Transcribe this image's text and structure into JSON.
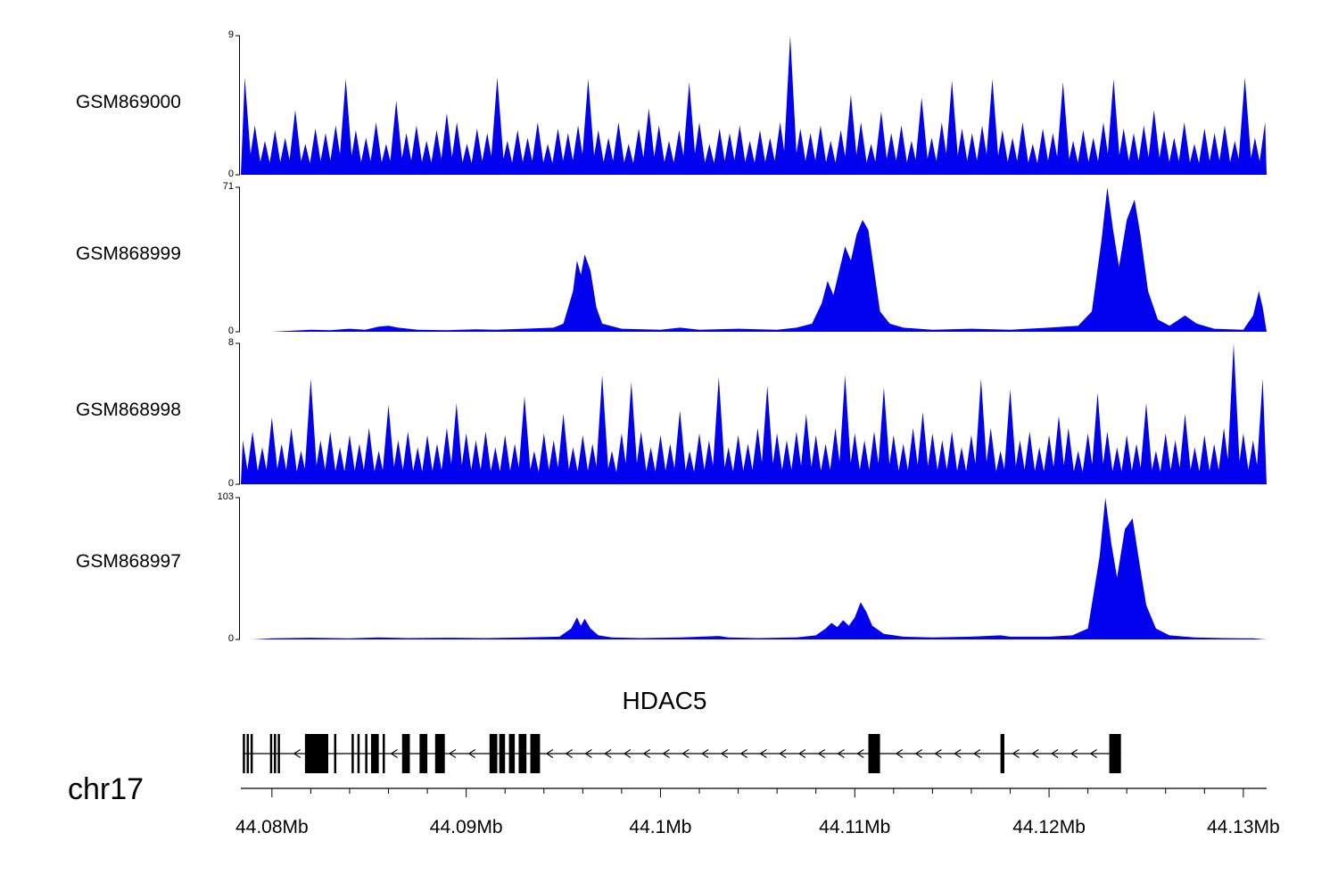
{
  "chart_data": {
    "type": "area",
    "chromosome_label": "chr17",
    "colors": {
      "track_fill": "#0202ee",
      "gene": "#000000",
      "axis": "#000000"
    },
    "x_axis": {
      "unit": "Mb",
      "range": [
        44.0784,
        44.1312
      ],
      "major_ticks": [
        44.08,
        44.09,
        44.1,
        44.11,
        44.12,
        44.13
      ],
      "major_tick_labels": [
        "44.08Mb",
        "44.09Mb",
        "44.1Mb",
        "44.11Mb",
        "44.12Mb",
        "44.13Mb"
      ],
      "minor_tick_step": 0.002
    },
    "tracks": [
      {
        "name": "GSM869000",
        "ylim": [
          0,
          9
        ],
        "ymax_label": "9",
        "ymin_label": "0",
        "render": "spikes",
        "spike_start": 44.0786,
        "spike_step": 0.00052,
        "spike_halfwidth": 0.00038,
        "heights": [
          6.3,
          3.2,
          2.2,
          2.9,
          2.4,
          4.2,
          2.0,
          3.0,
          2.7,
          3.2,
          6.2,
          2.9,
          2.4,
          3.4,
          2.0,
          4.8,
          2.7,
          3.2,
          2.2,
          2.9,
          4.0,
          3.4,
          2.0,
          3.0,
          2.7,
          6.3,
          2.2,
          2.9,
          2.4,
          3.4,
          2.0,
          3.0,
          2.7,
          3.2,
          6.2,
          2.9,
          2.4,
          3.4,
          2.0,
          3.0,
          4.3,
          3.2,
          2.2,
          2.9,
          6.0,
          3.4,
          2.0,
          3.0,
          2.7,
          3.2,
          2.2,
          2.9,
          2.4,
          3.4,
          9.0,
          3.0,
          2.7,
          3.2,
          2.2,
          2.9,
          5.2,
          3.4,
          2.0,
          4.1,
          2.7,
          3.2,
          2.2,
          5.0,
          2.4,
          3.4,
          6.1,
          3.0,
          2.7,
          3.2,
          6.2,
          2.9,
          2.4,
          3.4,
          2.0,
          3.0,
          2.7,
          6.0,
          2.2,
          2.9,
          2.4,
          3.4,
          6.2,
          3.0,
          2.7,
          3.2,
          4.2,
          2.9,
          2.4,
          3.4,
          2.0,
          3.0,
          2.7,
          3.2,
          2.2,
          6.3,
          2.4,
          3.4
        ]
      },
      {
        "name": "GSM868999",
        "ylim": [
          0,
          71
        ],
        "ymax_label": "71",
        "ymin_label": "0",
        "render": "poly",
        "points": [
          [
            44.08,
            0
          ],
          [
            44.081,
            0.5
          ],
          [
            44.082,
            1
          ],
          [
            44.083,
            0.8
          ],
          [
            44.084,
            1.5
          ],
          [
            44.0848,
            1
          ],
          [
            44.0855,
            2.5
          ],
          [
            44.086,
            3
          ],
          [
            44.0865,
            2
          ],
          [
            44.0875,
            1
          ],
          [
            44.089,
            0.8
          ],
          [
            44.0905,
            1.2
          ],
          [
            44.0915,
            1
          ],
          [
            44.093,
            1.5
          ],
          [
            44.0945,
            2
          ],
          [
            44.095,
            4
          ],
          [
            44.0955,
            20
          ],
          [
            44.0957,
            35
          ],
          [
            44.0959,
            28
          ],
          [
            44.0961,
            38
          ],
          [
            44.0964,
            30
          ],
          [
            44.0967,
            12
          ],
          [
            44.097,
            4
          ],
          [
            44.098,
            1.5
          ],
          [
            44.1,
            1
          ],
          [
            44.101,
            2
          ],
          [
            44.102,
            1
          ],
          [
            44.104,
            1.5
          ],
          [
            44.106,
            1
          ],
          [
            44.107,
            2
          ],
          [
            44.1078,
            4
          ],
          [
            44.1083,
            14
          ],
          [
            44.1086,
            25
          ],
          [
            44.1089,
            18
          ],
          [
            44.1092,
            30
          ],
          [
            44.1095,
            42
          ],
          [
            44.1098,
            35
          ],
          [
            44.1101,
            48
          ],
          [
            44.1104,
            55
          ],
          [
            44.1107,
            50
          ],
          [
            44.111,
            30
          ],
          [
            44.1113,
            10
          ],
          [
            44.1118,
            4
          ],
          [
            44.1125,
            2
          ],
          [
            44.114,
            1
          ],
          [
            44.116,
            1.5
          ],
          [
            44.118,
            1
          ],
          [
            44.12,
            2
          ],
          [
            44.1215,
            3
          ],
          [
            44.1222,
            10
          ],
          [
            44.1227,
            45
          ],
          [
            44.123,
            71
          ],
          [
            44.1233,
            50
          ],
          [
            44.1236,
            32
          ],
          [
            44.124,
            55
          ],
          [
            44.1244,
            65
          ],
          [
            44.1247,
            48
          ],
          [
            44.1251,
            20
          ],
          [
            44.1256,
            6
          ],
          [
            44.1262,
            3
          ],
          [
            44.127,
            8
          ],
          [
            44.1276,
            4
          ],
          [
            44.1285,
            1.5
          ],
          [
            44.13,
            1
          ],
          [
            44.1305,
            8
          ],
          [
            44.1308,
            20
          ],
          [
            44.131,
            12
          ],
          [
            44.1312,
            0
          ]
        ]
      },
      {
        "name": "GSM868998",
        "ylim": [
          0,
          8
        ],
        "ymax_label": "8",
        "ymin_label": "0",
        "render": "spikes",
        "spike_start": 44.0785,
        "spike_step": 0.0005,
        "spike_halfwidth": 0.00036,
        "heights": [
          2.5,
          3.0,
          2.1,
          3.8,
          2.3,
          3.2,
          1.9,
          6.0,
          2.5,
          3.0,
          2.1,
          2.8,
          2.3,
          3.2,
          1.9,
          4.5,
          2.5,
          3.0,
          2.1,
          2.8,
          2.3,
          3.2,
          4.6,
          2.9,
          2.5,
          3.0,
          2.1,
          2.8,
          2.3,
          5.0,
          1.9,
          2.9,
          2.5,
          4.0,
          2.1,
          2.8,
          2.3,
          6.2,
          1.9,
          2.9,
          5.8,
          3.0,
          2.1,
          2.8,
          2.3,
          4.2,
          1.9,
          2.9,
          2.5,
          6.1,
          2.1,
          2.8,
          2.3,
          3.2,
          5.6,
          2.9,
          2.5,
          3.0,
          4.0,
          2.8,
          2.3,
          3.2,
          6.2,
          2.9,
          2.5,
          3.0,
          5.5,
          2.8,
          2.3,
          3.2,
          4.1,
          2.9,
          2.5,
          3.0,
          2.1,
          2.8,
          6.0,
          3.2,
          1.9,
          5.4,
          2.5,
          3.0,
          2.1,
          2.8,
          3.9,
          3.2,
          1.9,
          2.9,
          5.2,
          3.0,
          2.1,
          2.8,
          2.3,
          4.6,
          1.9,
          2.9,
          2.5,
          4.0,
          2.1,
          2.8,
          2.3,
          3.2,
          8.0,
          2.9,
          2.5,
          6.0
        ]
      },
      {
        "name": "GSM868997",
        "ylim": [
          0,
          103
        ],
        "ymax_label": "103",
        "ymin_label": "0",
        "render": "poly",
        "points": [
          [
            44.079,
            0
          ],
          [
            44.08,
            0.8
          ],
          [
            44.082,
            1.2
          ],
          [
            44.084,
            0.8
          ],
          [
            44.0855,
            1.5
          ],
          [
            44.087,
            1
          ],
          [
            44.089,
            1.2
          ],
          [
            44.091,
            1
          ],
          [
            44.093,
            1.5
          ],
          [
            44.0948,
            2
          ],
          [
            44.0954,
            8
          ],
          [
            44.0957,
            16
          ],
          [
            44.0959,
            10
          ],
          [
            44.0961,
            15
          ],
          [
            44.0964,
            8
          ],
          [
            44.0968,
            3
          ],
          [
            44.0975,
            1.5
          ],
          [
            44.099,
            1
          ],
          [
            44.101,
            1.5
          ],
          [
            44.103,
            2.5
          ],
          [
            44.1035,
            1.5
          ],
          [
            44.105,
            1
          ],
          [
            44.107,
            1.5
          ],
          [
            44.108,
            3
          ],
          [
            44.1085,
            8
          ],
          [
            44.1088,
            12
          ],
          [
            44.1091,
            9
          ],
          [
            44.1094,
            14
          ],
          [
            44.1097,
            10
          ],
          [
            44.11,
            16
          ],
          [
            44.1103,
            27
          ],
          [
            44.1106,
            20
          ],
          [
            44.1109,
            10
          ],
          [
            44.1115,
            4
          ],
          [
            44.1125,
            2
          ],
          [
            44.114,
            1.5
          ],
          [
            44.116,
            2
          ],
          [
            44.1175,
            3
          ],
          [
            44.118,
            2
          ],
          [
            44.12,
            2
          ],
          [
            44.1212,
            3
          ],
          [
            44.122,
            8
          ],
          [
            44.1226,
            60
          ],
          [
            44.1229,
            103
          ],
          [
            44.1232,
            70
          ],
          [
            44.1235,
            45
          ],
          [
            44.1239,
            80
          ],
          [
            44.1243,
            88
          ],
          [
            44.1246,
            60
          ],
          [
            44.125,
            25
          ],
          [
            44.1255,
            8
          ],
          [
            44.1262,
            3
          ],
          [
            44.1275,
            1.5
          ],
          [
            44.129,
            1
          ],
          [
            44.1305,
            0.8
          ],
          [
            44.1312,
            0
          ]
        ]
      }
    ],
    "gene_track": {
      "gene_name": "HDAC5",
      "strand": "-",
      "span": [
        44.0785,
        44.1237
      ],
      "exons": [
        [
          44.0785,
          44.0786
        ],
        [
          44.0787,
          44.0788
        ],
        [
          44.0789,
          44.079
        ],
        [
          44.0799,
          44.08
        ],
        [
          44.0801,
          44.0802
        ],
        [
          44.0803,
          44.0804
        ],
        [
          44.0817,
          44.0829
        ],
        [
          44.0832,
          44.0833
        ],
        [
          44.0841,
          44.0842
        ],
        [
          44.0844,
          44.0845
        ],
        [
          44.0848,
          44.0849
        ],
        [
          44.0851,
          44.0855
        ],
        [
          44.0857,
          44.0858
        ],
        [
          44.0867,
          44.0871
        ],
        [
          44.0876,
          44.088
        ],
        [
          44.0884,
          44.0889
        ],
        [
          44.0912,
          44.0916
        ],
        [
          44.0917,
          44.092
        ],
        [
          44.0922,
          44.0925
        ],
        [
          44.0927,
          44.0931
        ],
        [
          44.0933,
          44.0938
        ],
        [
          44.1107,
          44.1113
        ],
        [
          44.1175,
          44.1177
        ],
        [
          44.1231,
          44.1237
        ]
      ]
    }
  }
}
